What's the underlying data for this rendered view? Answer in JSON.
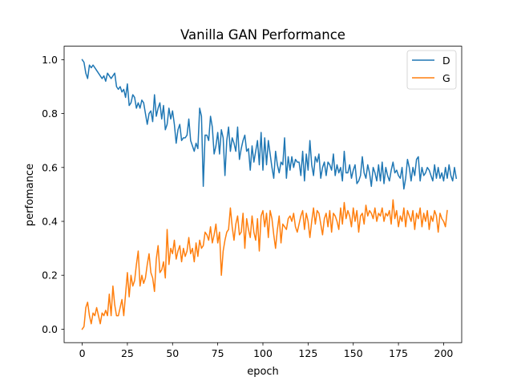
{
  "chart_data": {
    "type": "line",
    "title": "Vanilla GAN Performance",
    "xlabel": "epoch",
    "ylabel": "perfomance",
    "xlim": [
      -10,
      210
    ],
    "ylim": [
      -0.05,
      1.05
    ],
    "x_ticks": [
      0,
      25,
      50,
      75,
      100,
      125,
      150,
      175,
      200
    ],
    "x_tick_labels": [
      "0",
      "25",
      "50",
      "75",
      "100",
      "125",
      "150",
      "175",
      "200"
    ],
    "y_ticks": [
      0.0,
      0.2,
      0.4,
      0.6,
      0.8,
      1.0
    ],
    "y_tick_labels": [
      "0.0",
      "0.2",
      "0.4",
      "0.6",
      "0.8",
      "1.0"
    ],
    "legend_position": "top-right",
    "x_start": 0,
    "x_step": 1,
    "series": [
      {
        "name": "D",
        "color": "#1f77b4",
        "values": [
          1.0,
          0.99,
          0.95,
          0.93,
          0.98,
          0.97,
          0.98,
          0.97,
          0.96,
          0.95,
          0.94,
          0.93,
          0.94,
          0.92,
          0.95,
          0.94,
          0.93,
          0.94,
          0.95,
          0.9,
          0.89,
          0.9,
          0.88,
          0.89,
          0.86,
          0.91,
          0.83,
          0.84,
          0.87,
          0.86,
          0.82,
          0.84,
          0.82,
          0.85,
          0.84,
          0.8,
          0.76,
          0.8,
          0.81,
          0.77,
          0.87,
          0.79,
          0.82,
          0.84,
          0.78,
          0.83,
          0.74,
          0.76,
          0.82,
          0.78,
          0.81,
          0.76,
          0.69,
          0.74,
          0.76,
          0.7,
          0.71,
          0.71,
          0.72,
          0.78,
          0.7,
          0.68,
          0.66,
          0.69,
          0.67,
          0.82,
          0.79,
          0.53,
          0.72,
          0.72,
          0.7,
          0.79,
          0.75,
          0.65,
          0.68,
          0.73,
          0.65,
          0.74,
          0.71,
          0.57,
          0.7,
          0.75,
          0.66,
          0.71,
          0.69,
          0.66,
          0.75,
          0.63,
          0.67,
          0.7,
          0.72,
          0.66,
          0.67,
          0.59,
          0.68,
          0.62,
          0.66,
          0.7,
          0.61,
          0.73,
          0.59,
          0.71,
          0.61,
          0.7,
          0.65,
          0.6,
          0.56,
          0.66,
          0.61,
          0.58,
          0.62,
          0.61,
          0.71,
          0.56,
          0.64,
          0.59,
          0.64,
          0.6,
          0.63,
          0.62,
          0.62,
          0.57,
          0.66,
          0.55,
          0.65,
          0.59,
          0.7,
          0.61,
          0.57,
          0.64,
          0.62,
          0.65,
          0.56,
          0.6,
          0.62,
          0.57,
          0.62,
          0.61,
          0.59,
          0.65,
          0.57,
          0.61,
          0.58,
          0.6,
          0.55,
          0.66,
          0.58,
          0.58,
          0.61,
          0.56,
          0.59,
          0.61,
          0.54,
          0.55,
          0.57,
          0.64,
          0.58,
          0.56,
          0.61,
          0.58,
          0.53,
          0.6,
          0.58,
          0.55,
          0.61,
          0.55,
          0.62,
          0.54,
          0.6,
          0.57,
          0.55,
          0.59,
          0.62,
          0.58,
          0.59,
          0.57,
          0.56,
          0.6,
          0.52,
          0.56,
          0.63,
          0.6,
          0.55,
          0.6,
          0.57,
          0.63,
          0.64,
          0.55,
          0.6,
          0.57,
          0.58,
          0.6,
          0.59,
          0.57,
          0.55,
          0.61,
          0.56,
          0.6,
          0.56,
          0.58,
          0.55,
          0.6,
          0.56,
          0.61,
          0.57,
          0.55,
          0.6,
          0.56
        ]
      },
      {
        "name": "G",
        "color": "#ff7f0e",
        "values": [
          0.0,
          0.01,
          0.08,
          0.1,
          0.05,
          0.02,
          0.06,
          0.05,
          0.08,
          0.05,
          0.02,
          0.06,
          0.05,
          0.07,
          0.05,
          0.13,
          0.05,
          0.16,
          0.09,
          0.05,
          0.05,
          0.08,
          0.11,
          0.05,
          0.13,
          0.21,
          0.12,
          0.2,
          0.16,
          0.18,
          0.24,
          0.29,
          0.16,
          0.2,
          0.17,
          0.19,
          0.24,
          0.28,
          0.21,
          0.19,
          0.14,
          0.26,
          0.31,
          0.21,
          0.22,
          0.25,
          0.19,
          0.37,
          0.24,
          0.3,
          0.28,
          0.33,
          0.26,
          0.29,
          0.31,
          0.25,
          0.3,
          0.27,
          0.29,
          0.34,
          0.28,
          0.3,
          0.25,
          0.32,
          0.27,
          0.33,
          0.3,
          0.31,
          0.36,
          0.35,
          0.33,
          0.38,
          0.32,
          0.35,
          0.39,
          0.32,
          0.36,
          0.2,
          0.29,
          0.33,
          0.36,
          0.37,
          0.45,
          0.38,
          0.33,
          0.39,
          0.42,
          0.35,
          0.36,
          0.43,
          0.3,
          0.41,
          0.37,
          0.34,
          0.42,
          0.36,
          0.33,
          0.41,
          0.29,
          0.42,
          0.44,
          0.38,
          0.43,
          0.34,
          0.44,
          0.41,
          0.35,
          0.3,
          0.37,
          0.42,
          0.32,
          0.39,
          0.38,
          0.37,
          0.41,
          0.42,
          0.4,
          0.43,
          0.38,
          0.36,
          0.39,
          0.42,
          0.44,
          0.37,
          0.43,
          0.4,
          0.34,
          0.4,
          0.45,
          0.39,
          0.44,
          0.43,
          0.39,
          0.35,
          0.41,
          0.43,
          0.38,
          0.44,
          0.36,
          0.43,
          0.42,
          0.4,
          0.37,
          0.45,
          0.39,
          0.47,
          0.41,
          0.44,
          0.42,
          0.38,
          0.45,
          0.4,
          0.44,
          0.36,
          0.42,
          0.43,
          0.39,
          0.46,
          0.42,
          0.44,
          0.43,
          0.41,
          0.45,
          0.4,
          0.43,
          0.42,
          0.45,
          0.4,
          0.43,
          0.42,
          0.44,
          0.39,
          0.48,
          0.41,
          0.44,
          0.38,
          0.42,
          0.4,
          0.45,
          0.38,
          0.44,
          0.42,
          0.4,
          0.44,
          0.37,
          0.43,
          0.41,
          0.45,
          0.38,
          0.43,
          0.4,
          0.44,
          0.37,
          0.42,
          0.4,
          0.44,
          0.42,
          0.36,
          0.43,
          0.41,
          0.4,
          0.38,
          0.44
        ]
      }
    ]
  }
}
